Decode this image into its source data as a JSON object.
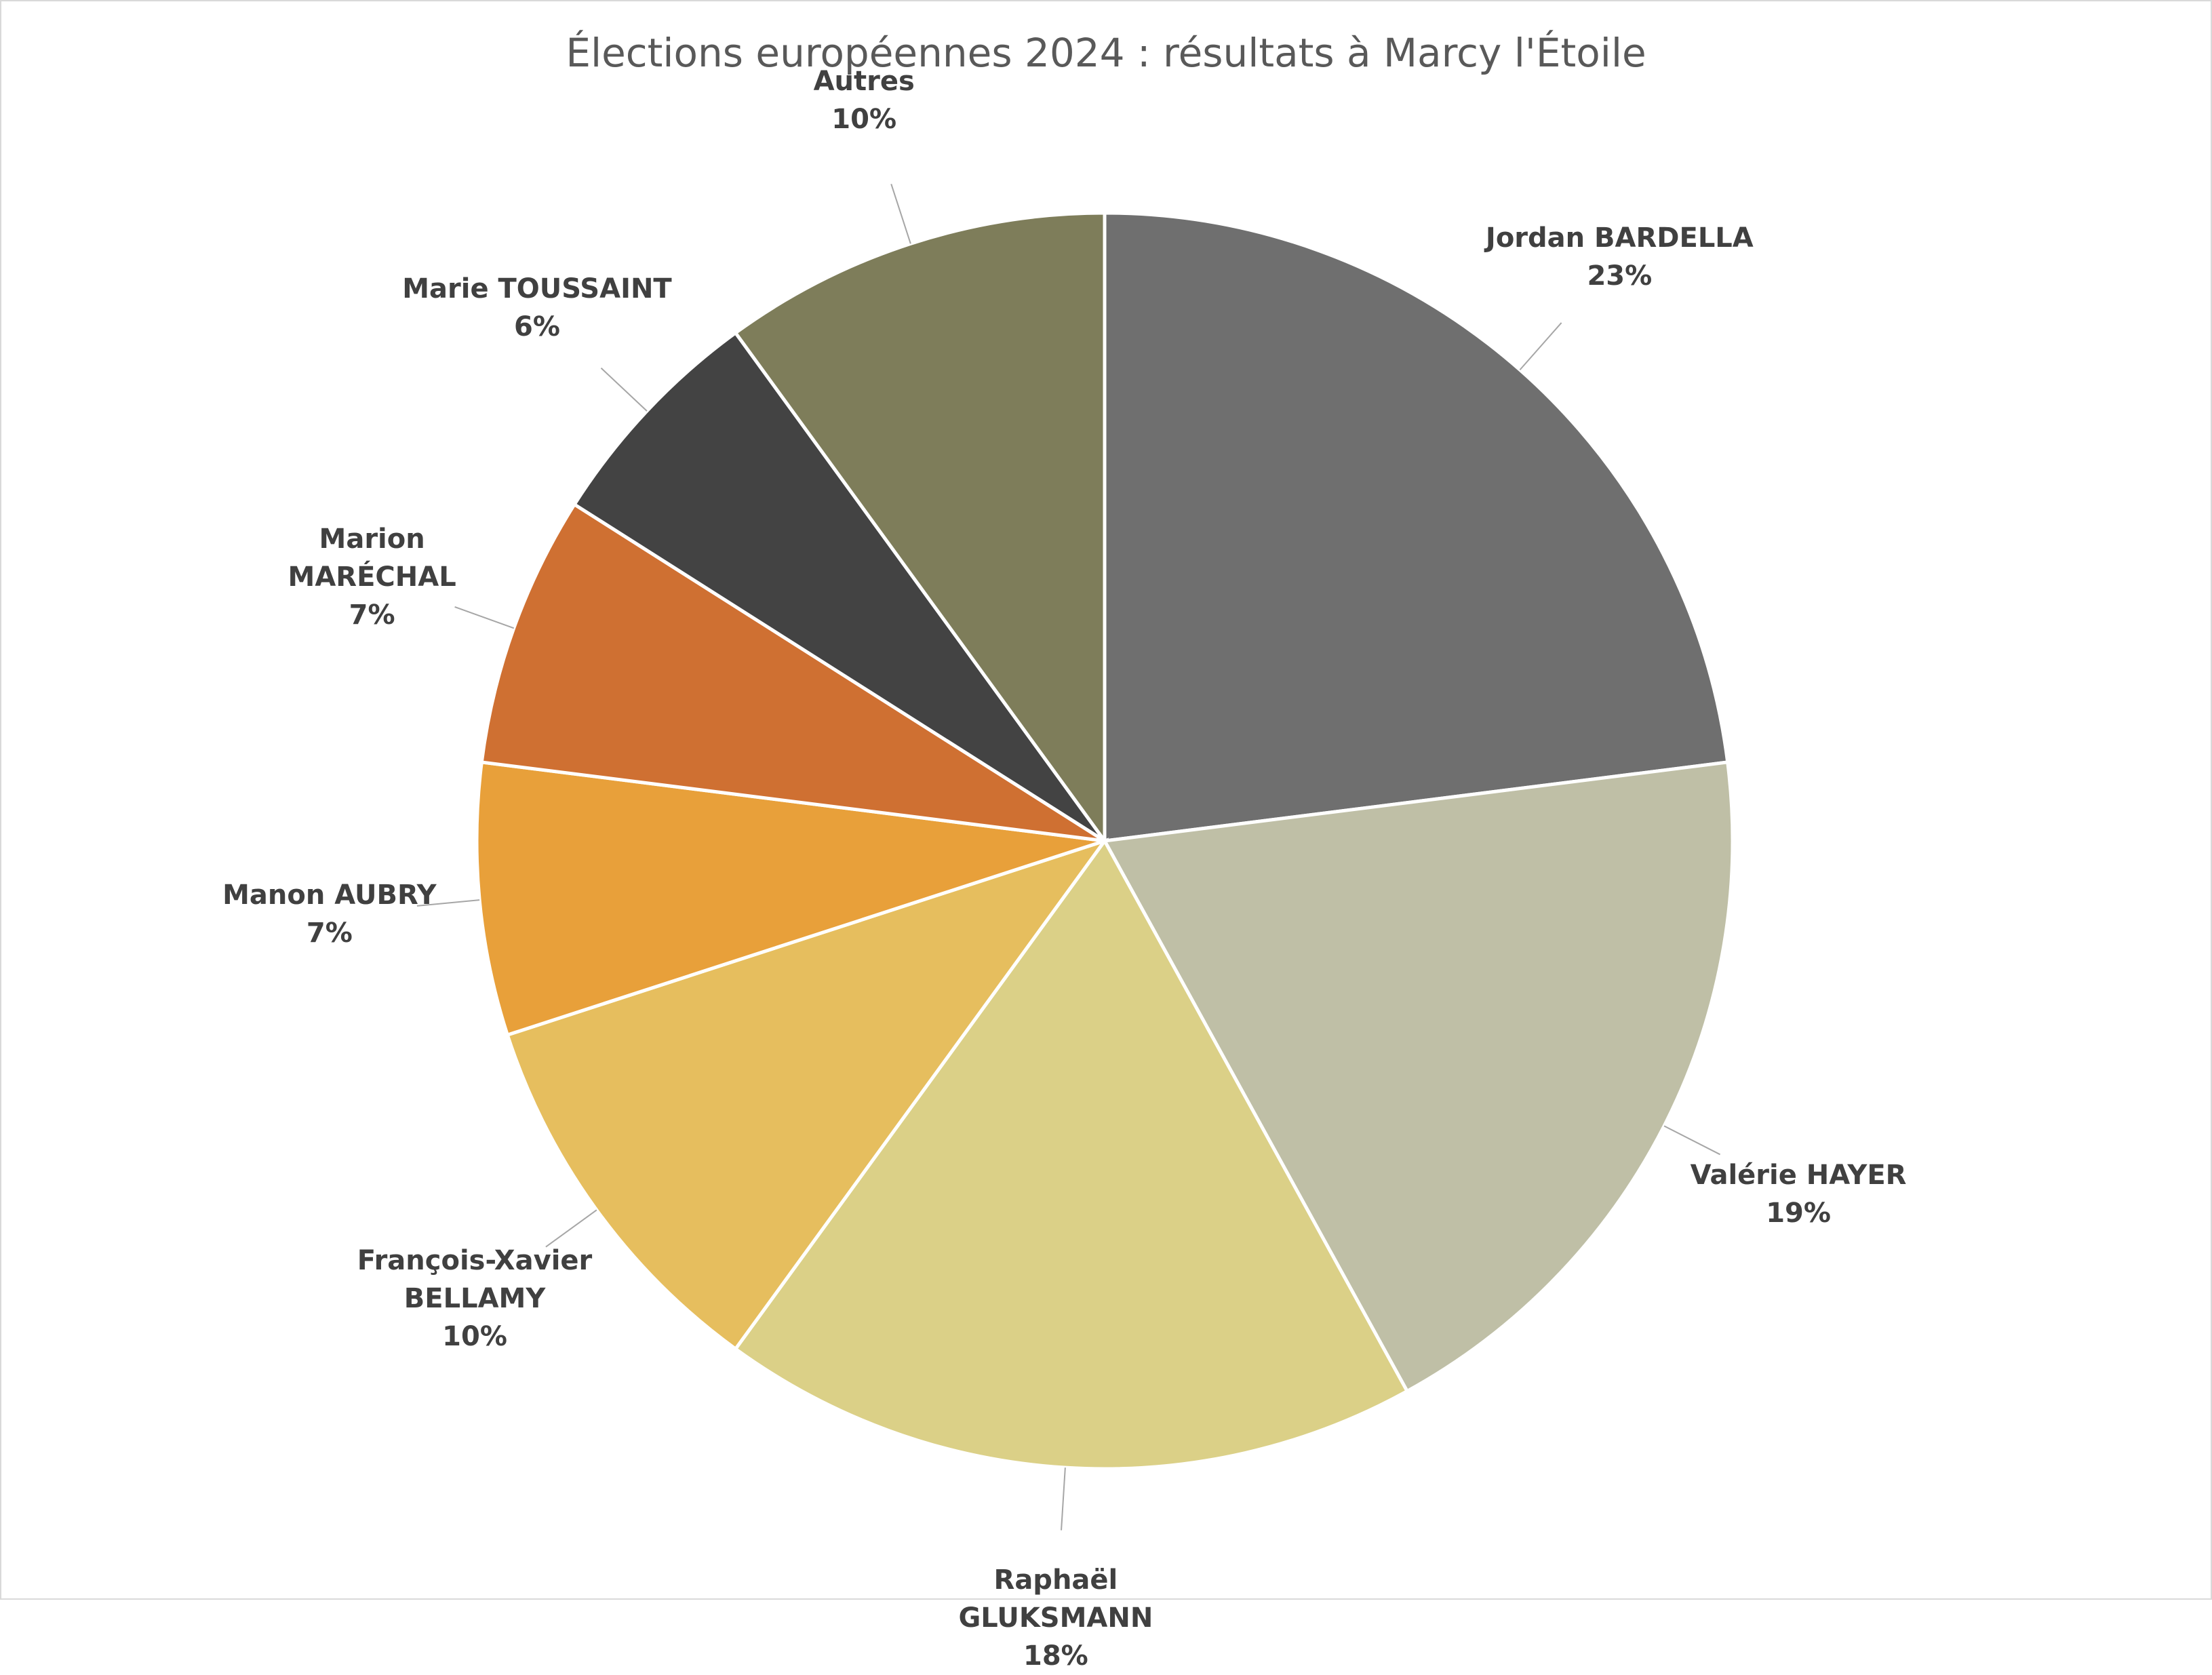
{
  "chart_data": {
    "type": "pie",
    "title": "Élections européennes 2024 : résultats à Marcy l'Étoile",
    "categories": [
      "Jordan BARDELLA",
      "Valérie HAYER",
      "Raphaël GLUKSMANN",
      "François-Xavier BELLAMY",
      "Manon AUBRY",
      "Marion MARÉCHAL",
      "Marie TOUSSAINT",
      "Autres"
    ],
    "values": [
      23,
      19,
      18,
      10,
      7,
      7,
      6,
      10
    ],
    "value_labels": [
      "23%",
      "19%",
      "18%",
      "10%",
      "7%",
      "7%",
      "6%",
      "10%"
    ],
    "colors": [
      "#6f6f6f",
      "#bfbfa6",
      "#dbd087",
      "#e6be5e",
      "#e8a03a",
      "#cf7032",
      "#434343",
      "#7e7d5a"
    ]
  }
}
